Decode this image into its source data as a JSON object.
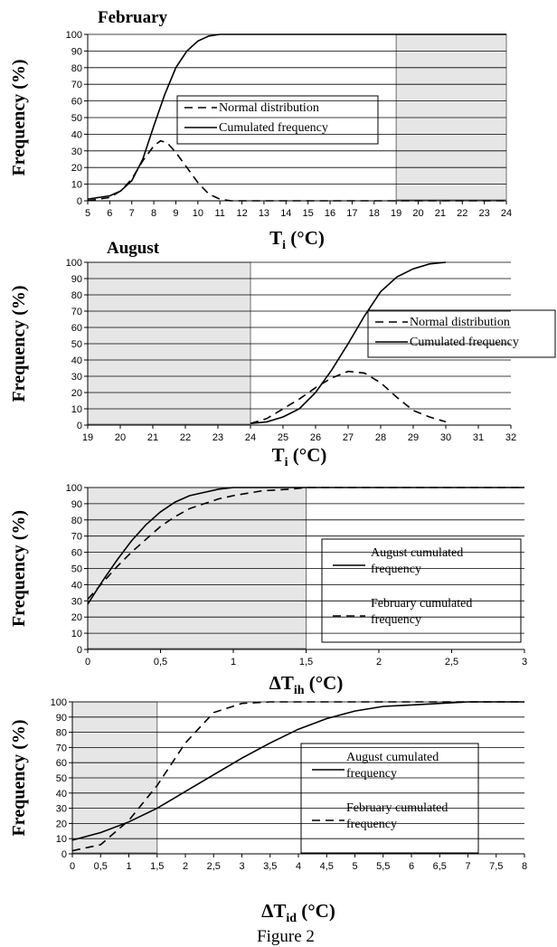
{
  "caption": "Figure 2",
  "chart_data": [
    {
      "type": "line",
      "title": "February",
      "xlabel_main": "T",
      "xlabel_sub": "i",
      "xlabel_unit": "(°C)",
      "ylabel": "Frequency (%)",
      "xlim": [
        5,
        24
      ],
      "ylim": [
        0,
        100
      ],
      "xticks": [
        "5",
        "6",
        "7",
        "8",
        "9",
        "10",
        "11",
        "12",
        "13",
        "14",
        "15",
        "16",
        "17",
        "18",
        "19",
        "20",
        "21",
        "22",
        "23",
        "24"
      ],
      "yticks": [
        "0",
        "10",
        "20",
        "30",
        "40",
        "50",
        "60",
        "70",
        "80",
        "90",
        "100"
      ],
      "grid": "horizontal",
      "shaded_x": [
        19,
        24
      ],
      "legend": "center",
      "series": [
        {
          "name": "Normal distribution",
          "style": "dashed",
          "x": [
            5,
            6,
            6.5,
            7,
            7.5,
            8,
            8.3,
            8.6,
            9,
            9.5,
            10,
            10.5,
            11,
            11.5,
            12,
            15,
            19,
            24
          ],
          "y": [
            0,
            2,
            6,
            13,
            24,
            33,
            36,
            35,
            29,
            20,
            11,
            4,
            1,
            0,
            0,
            0,
            0,
            0
          ]
        },
        {
          "name": "Cumulated frequency",
          "style": "solid",
          "x": [
            5,
            6,
            6.5,
            7,
            7.5,
            8,
            8.5,
            9,
            9.5,
            10,
            10.5,
            11,
            11.5,
            12,
            24
          ],
          "y": [
            1,
            3,
            6,
            12,
            25,
            45,
            64,
            80,
            90,
            96,
            99,
            100,
            100,
            100,
            100
          ]
        }
      ]
    },
    {
      "type": "line",
      "title": "August",
      "xlabel_main": "T",
      "xlabel_sub": "i",
      "xlabel_unit": "(°C)",
      "ylabel": "Frequency (%)",
      "xlim": [
        19,
        32
      ],
      "ylim": [
        0,
        100
      ],
      "xticks": [
        "19",
        "20",
        "21",
        "22",
        "23",
        "24",
        "25",
        "26",
        "27",
        "28",
        "29",
        "30",
        "31",
        "32"
      ],
      "yticks": [
        "0",
        "10",
        "20",
        "30",
        "40",
        "50",
        "60",
        "70",
        "80",
        "90",
        "100"
      ],
      "grid": "horizontal",
      "shaded_x": [
        19,
        24
      ],
      "legend": "right",
      "series": [
        {
          "name": "Normal distribution",
          "style": "dashed",
          "x": [
            24,
            24.5,
            25,
            25.5,
            26,
            26.5,
            27,
            27.5,
            28,
            28.5,
            29,
            29.5,
            30
          ],
          "y": [
            1,
            4,
            10,
            16,
            23,
            29,
            33,
            32,
            26,
            17,
            9,
            5,
            2
          ]
        },
        {
          "name": "Cumulated frequency",
          "style": "solid",
          "x": [
            24,
            24.5,
            25,
            25.5,
            26,
            26.5,
            27,
            27.5,
            28,
            28.5,
            29,
            29.5,
            30
          ],
          "y": [
            1,
            2,
            5,
            10,
            20,
            34,
            50,
            67,
            82,
            91,
            96,
            99,
            100
          ]
        }
      ]
    },
    {
      "type": "line",
      "title": "",
      "xlabel_main": "ΔT",
      "xlabel_sub": "ih",
      "xlabel_unit": "(°C)",
      "ylabel": "Frequency (%)",
      "xlim": [
        0,
        3
      ],
      "ylim": [
        0,
        100
      ],
      "xticks": [
        "0",
        "0,5",
        "1",
        "1,5",
        "2",
        "2,5",
        "3"
      ],
      "yticks": [
        "0",
        "10",
        "20",
        "30",
        "40",
        "50",
        "60",
        "70",
        "80",
        "90",
        "100"
      ],
      "grid": "horizontal",
      "shaded_x": [
        0,
        1.5
      ],
      "legend": "bottom-right",
      "series": [
        {
          "name": "August cumulated frequency",
          "style": "solid",
          "x": [
            0,
            0.1,
            0.2,
            0.3,
            0.4,
            0.5,
            0.6,
            0.7,
            0.8,
            0.9,
            1.0,
            1.2,
            1.5,
            3
          ],
          "y": [
            28,
            42,
            55,
            67,
            77,
            85,
            91,
            95,
            97,
            99,
            100,
            100,
            100,
            100
          ]
        },
        {
          "name": "February cumulated frequency",
          "style": "dashed",
          "x": [
            0,
            0.1,
            0.2,
            0.3,
            0.4,
            0.5,
            0.6,
            0.7,
            0.8,
            0.9,
            1.0,
            1.2,
            1.4,
            1.5,
            3
          ],
          "y": [
            31,
            41,
            51,
            60,
            68,
            76,
            82,
            87,
            90,
            93,
            95,
            98,
            99,
            100,
            100
          ]
        }
      ]
    },
    {
      "type": "line",
      "title": "",
      "xlabel_main": "ΔT",
      "xlabel_sub": "id",
      "xlabel_unit": "(°C)",
      "ylabel": "Frequency (%)",
      "xlim": [
        0,
        8
      ],
      "ylim": [
        0,
        100
      ],
      "xticks": [
        "0",
        "0,5",
        "1",
        "1,5",
        "2",
        "2,5",
        "3",
        "3,5",
        "4",
        "4,5",
        "5",
        "5,5",
        "6",
        "6,5",
        "7",
        "7,5",
        "8"
      ],
      "yticks": [
        "0",
        "10",
        "20",
        "30",
        "40",
        "50",
        "60",
        "70",
        "80",
        "90",
        "100"
      ],
      "grid": "horizontal",
      "shaded_x": [
        0,
        1.5
      ],
      "legend": "center-right",
      "series": [
        {
          "name": "August cumulated frequency",
          "style": "solid",
          "x": [
            0,
            0.5,
            1,
            1.5,
            2,
            2.5,
            3,
            3.5,
            4,
            4.5,
            5,
            5.5,
            6,
            6.5,
            7,
            7.5,
            8
          ],
          "y": [
            9,
            14,
            21,
            30,
            41,
            52,
            63,
            73,
            82,
            89,
            94,
            97,
            98,
            99,
            100,
            100,
            100
          ]
        },
        {
          "name": "February cumulated frequency",
          "style": "dashed",
          "x": [
            0,
            0.5,
            1,
            1.5,
            2,
            2.5,
            3,
            3.5,
            4,
            8
          ],
          "y": [
            2,
            6,
            22,
            45,
            73,
            93,
            99,
            100,
            100,
            100
          ]
        }
      ]
    }
  ]
}
